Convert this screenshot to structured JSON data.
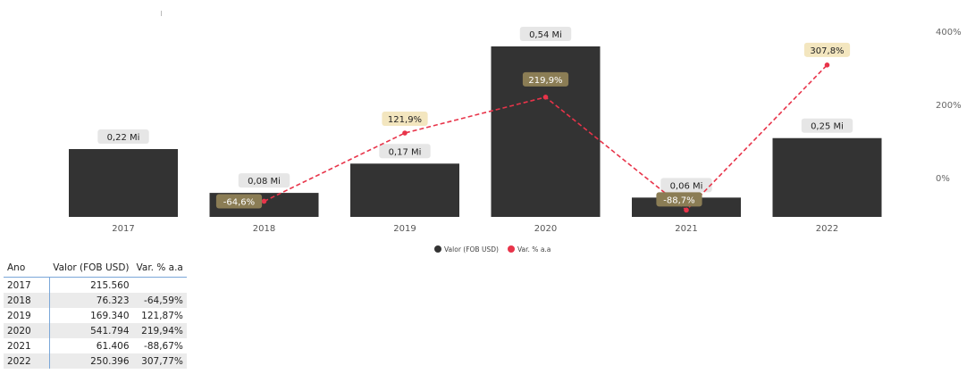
{
  "chart_data": {
    "type": "bar",
    "categories": [
      "2017",
      "2018",
      "2019",
      "2020",
      "2021",
      "2022"
    ],
    "series": [
      {
        "name": "Valor (FOB USD)",
        "type": "bar",
        "axis": "left",
        "values": [
          215560,
          76323,
          169340,
          541794,
          61406,
          250396
        ],
        "labels": [
          "0,22 Mi",
          "0,08 Mi",
          "0,17 Mi",
          "0,54 Mi",
          "0,06 Mi",
          "0,25 Mi"
        ],
        "color": "#333333"
      },
      {
        "name": "Var. % a.a",
        "type": "line",
        "axis": "right",
        "style": "dashed",
        "values": [
          null,
          -64.59,
          121.87,
          219.94,
          -88.67,
          307.77
        ],
        "labels": [
          "",
          "-64,6%",
          "121,9%",
          "219,9%",
          "-88,7%",
          "307,8%"
        ],
        "color": "#e8344a"
      }
    ],
    "y_left_range": [
      0,
      541794
    ],
    "y_right_range": [
      -100,
      400
    ],
    "y_right_ticks": [
      "400%",
      "200%",
      "0%"
    ],
    "legend_position": "bottom-center",
    "grid": false
  },
  "table": {
    "headers": [
      "Ano",
      "Valor (FOB USD)",
      "Var. % a.a"
    ],
    "rows": [
      [
        "2017",
        "215.560",
        ""
      ],
      [
        "2018",
        "76.323",
        "-64,59%"
      ],
      [
        "2019",
        "169.340",
        "121,87%"
      ],
      [
        "2020",
        "541.794",
        "219,94%"
      ],
      [
        "2021",
        "61.406",
        "-88,67%"
      ],
      [
        "2022",
        "250.396",
        "307,77%"
      ]
    ]
  }
}
